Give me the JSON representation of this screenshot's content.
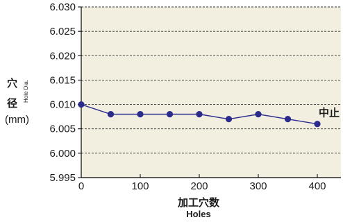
{
  "chart_data": {
    "type": "line",
    "x": [
      0,
      50,
      100,
      150,
      200,
      250,
      300,
      350,
      400
    ],
    "series": [
      {
        "values": [
          6.01,
          6.008,
          6.008,
          6.008,
          6.008,
          6.007,
          6.008,
          6.007,
          6.006
        ]
      }
    ],
    "ylabel": {
      "cjk": "穴径",
      "en": "Hole Dia.",
      "unit": "(mm)"
    },
    "xlabel": {
      "cjk": "加工穴数",
      "en": "Holes"
    },
    "xlim": [
      0,
      440
    ],
    "ylim": [
      5.995,
      6.03
    ],
    "xticks": [
      "0",
      "100",
      "200",
      "300",
      "400"
    ],
    "xtick_values": [
      0,
      100,
      200,
      300,
      400
    ],
    "yticks": [
      "5.995",
      "6.000",
      "6.005",
      "6.010",
      "6.015",
      "6.020",
      "6.025",
      "6.030"
    ],
    "ytick_values": [
      5.995,
      6.0,
      6.005,
      6.01,
      6.015,
      6.02,
      6.025,
      6.03
    ],
    "annotation": {
      "text": "中止",
      "x": 400,
      "y": 6.006
    },
    "grid": "horizontal-dashed",
    "colors": {
      "plot_bg": "#f2eee0",
      "line": "#2b2b8e",
      "marker": "#2b2b8e",
      "grid": "#333333"
    }
  }
}
